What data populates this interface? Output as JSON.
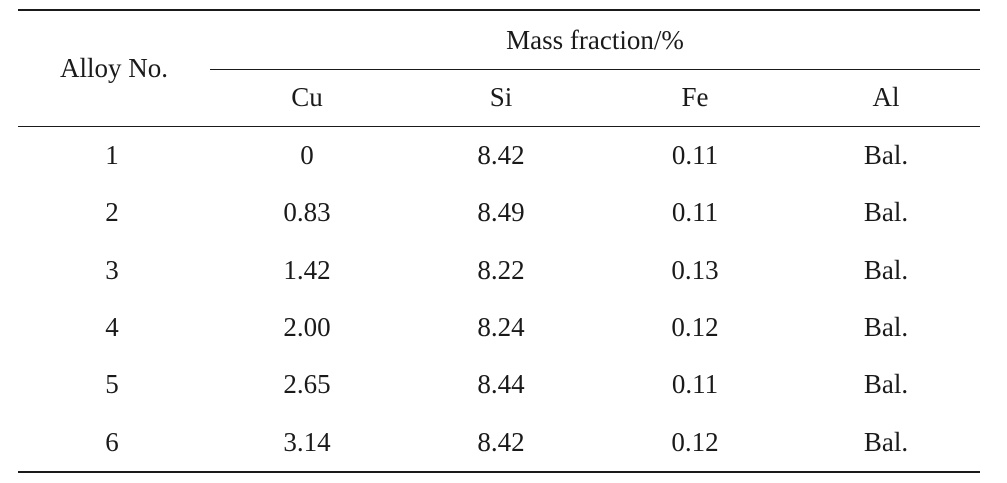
{
  "table": {
    "row_header": "Alloy No.",
    "group_header": "Mass fraction/%",
    "columns": [
      "Cu",
      "Si",
      "Fe",
      "Al"
    ],
    "rows": [
      {
        "alloy": "1",
        "values": [
          "0",
          "8.42",
          "0.11",
          "Bal."
        ]
      },
      {
        "alloy": "2",
        "values": [
          "0.83",
          "8.49",
          "0.11",
          "Bal."
        ]
      },
      {
        "alloy": "3",
        "values": [
          "1.42",
          "8.22",
          "0.13",
          "Bal."
        ]
      },
      {
        "alloy": "4",
        "values": [
          "2.00",
          "8.24",
          "0.12",
          "Bal."
        ]
      },
      {
        "alloy": "5",
        "values": [
          "2.65",
          "8.44",
          "0.11",
          "Bal."
        ]
      },
      {
        "alloy": "6",
        "values": [
          "3.14",
          "8.42",
          "0.12",
          "Bal."
        ]
      }
    ]
  }
}
